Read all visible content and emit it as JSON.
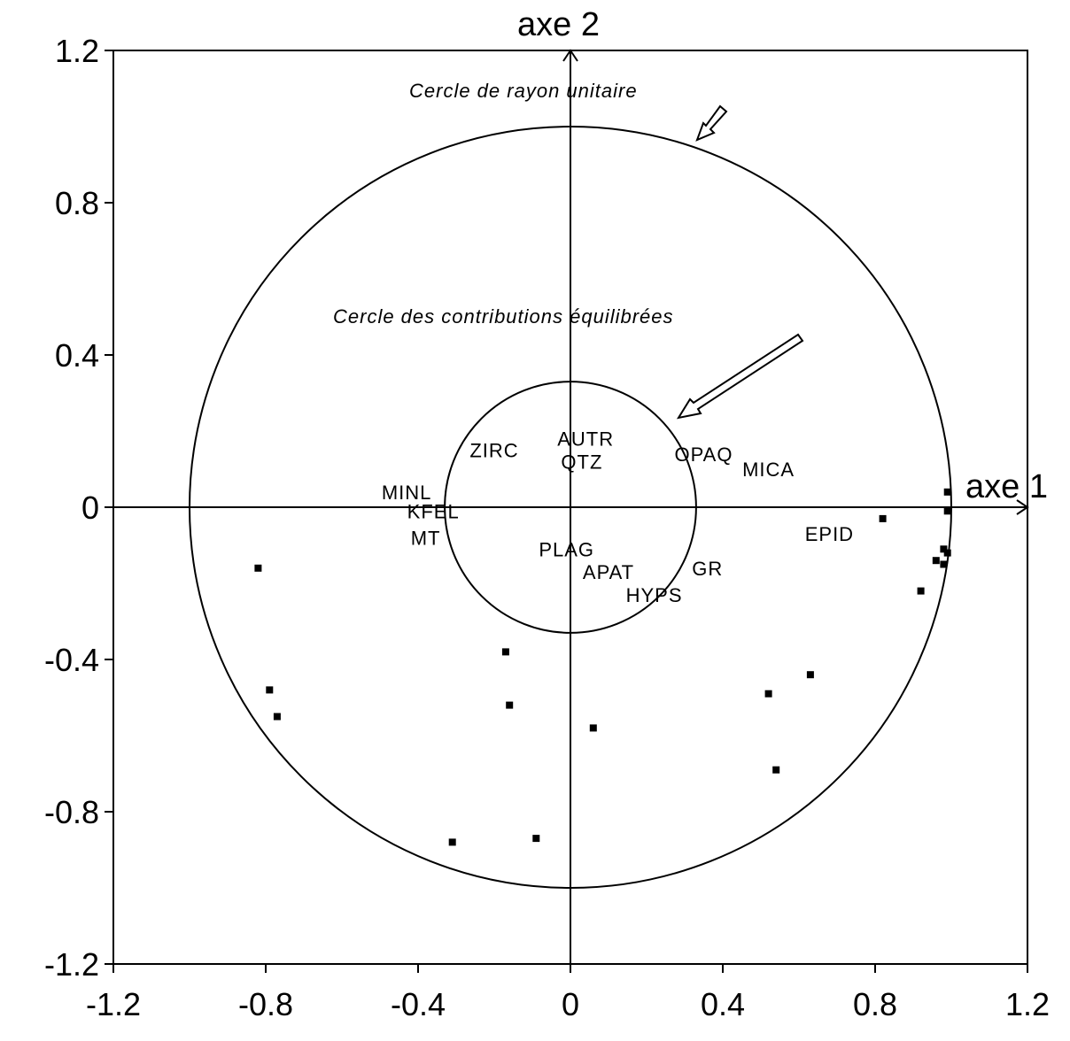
{
  "chart_data": {
    "type": "scatter",
    "title": "",
    "xlabel": "axe 1",
    "ylabel": "axe 2",
    "xlim": [
      -1.2,
      1.2
    ],
    "ylim": [
      -1.2,
      1.2
    ],
    "x_ticks": [
      "-1.2",
      "-0.8",
      "-0.4",
      "0",
      "0.4",
      "0.8",
      "1.2"
    ],
    "y_ticks": [
      "1.2",
      "0.8",
      "0.4",
      "0",
      "-0.4",
      "-0.8",
      "-1.2"
    ],
    "x_tick_values": [
      -1.2,
      -0.8,
      -0.4,
      0,
      0.4,
      0.8,
      1.2
    ],
    "y_tick_values": [
      1.2,
      0.8,
      0.4,
      0,
      -0.4,
      -0.8,
      -1.2
    ],
    "grid": false,
    "circles": [
      {
        "radius": 1.0,
        "label": "Cercle de rayon unitaire"
      },
      {
        "radius": 0.33,
        "label": "Cercle des contributions équilibrées"
      }
    ],
    "variables": [
      {
        "label": "ZIRC",
        "x": -0.2,
        "y": 0.15
      },
      {
        "label": "AUTR",
        "x": 0.04,
        "y": 0.18
      },
      {
        "label": "QTZ",
        "x": 0.03,
        "y": 0.12
      },
      {
        "label": "OPAQ",
        "x": 0.35,
        "y": 0.14
      },
      {
        "label": "MICA",
        "x": 0.52,
        "y": 0.1
      },
      {
        "label": "MINL",
        "x": -0.43,
        "y": 0.04
      },
      {
        "label": "KFEL",
        "x": -0.36,
        "y": -0.01
      },
      {
        "label": "MT",
        "x": -0.38,
        "y": -0.08
      },
      {
        "label": "EPID",
        "x": 0.68,
        "y": -0.07
      },
      {
        "label": "PLAG",
        "x": -0.01,
        "y": -0.11
      },
      {
        "label": "APAT",
        "x": 0.1,
        "y": -0.17
      },
      {
        "label": "GR",
        "x": 0.36,
        "y": -0.16
      },
      {
        "label": "HYPS",
        "x": 0.22,
        "y": -0.23
      }
    ],
    "points": [
      {
        "x": 0.99,
        "y": 0.04
      },
      {
        "x": 0.99,
        "y": -0.01
      },
      {
        "x": 0.82,
        "y": -0.03
      },
      {
        "x": 0.98,
        "y": -0.11
      },
      {
        "x": 0.99,
        "y": -0.12
      },
      {
        "x": 0.96,
        "y": -0.14
      },
      {
        "x": 0.98,
        "y": -0.15
      },
      {
        "x": 0.92,
        "y": -0.22
      },
      {
        "x": -0.82,
        "y": -0.16
      },
      {
        "x": -0.79,
        "y": -0.48
      },
      {
        "x": -0.77,
        "y": -0.55
      },
      {
        "x": -0.17,
        "y": -0.38
      },
      {
        "x": -0.16,
        "y": -0.52
      },
      {
        "x": 0.06,
        "y": -0.58
      },
      {
        "x": -0.31,
        "y": -0.88
      },
      {
        "x": -0.09,
        "y": -0.87
      },
      {
        "x": 0.52,
        "y": -0.49
      },
      {
        "x": 0.63,
        "y": -0.44
      },
      {
        "x": 0.54,
        "y": -0.69
      }
    ]
  }
}
